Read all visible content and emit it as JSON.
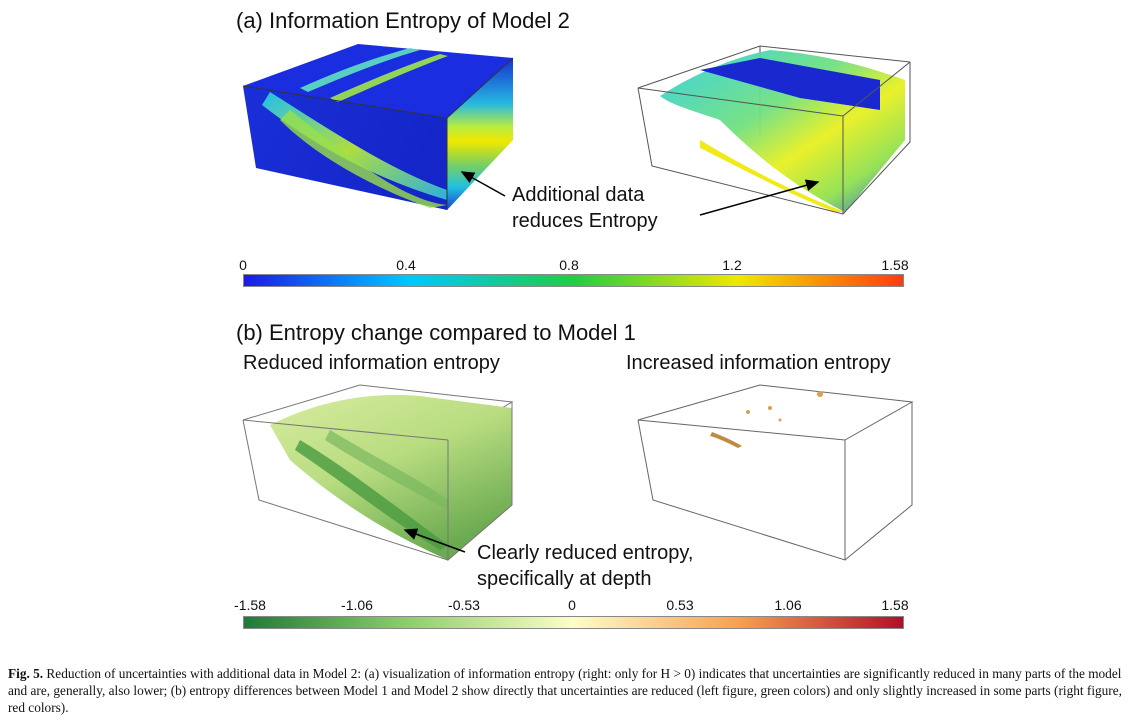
{
  "panel_a": {
    "title": "(a) Information Entropy of Model 2",
    "annotation_line1": "Additional data",
    "annotation_line2": "reduces Entropy",
    "colorbar_ticks": [
      "0",
      "0.4",
      "0.8",
      "1.2",
      "1.58"
    ],
    "colorbar_colors": [
      "#1a1ae6",
      "#00c8ff",
      "#22cc44",
      "#f0e800",
      "#ff3a10"
    ]
  },
  "panel_b": {
    "title": "(b) Entropy change compared to Model 1",
    "left_subtitle": "Reduced information entropy",
    "right_subtitle": "Increased information entropy",
    "annotation_line1": "Clearly reduced entropy,",
    "annotation_line2": "specifically at depth",
    "colorbar_ticks": [
      "-1.58",
      "-1.06",
      "-0.53",
      "0",
      "0.53",
      "1.06",
      "1.58"
    ],
    "colorbar_colors": [
      "#1e7a3a",
      "#8fcf6a",
      "#fdfdc8",
      "#f8a050",
      "#b0102a"
    ]
  },
  "caption": {
    "label": "Fig. 5.",
    "text": "Reduction of uncertainties with additional data in Model 2: (a) visualization of information entropy (right: only for H > 0) indicates that uncertainties are significantly reduced in many parts of the model and are, generally, also lower; (b) entropy differences between Model 1 and Model 2 show directly that uncertainties are reduced (left figure, green colors) and only slightly increased in some parts (right figure, red colors)."
  }
}
